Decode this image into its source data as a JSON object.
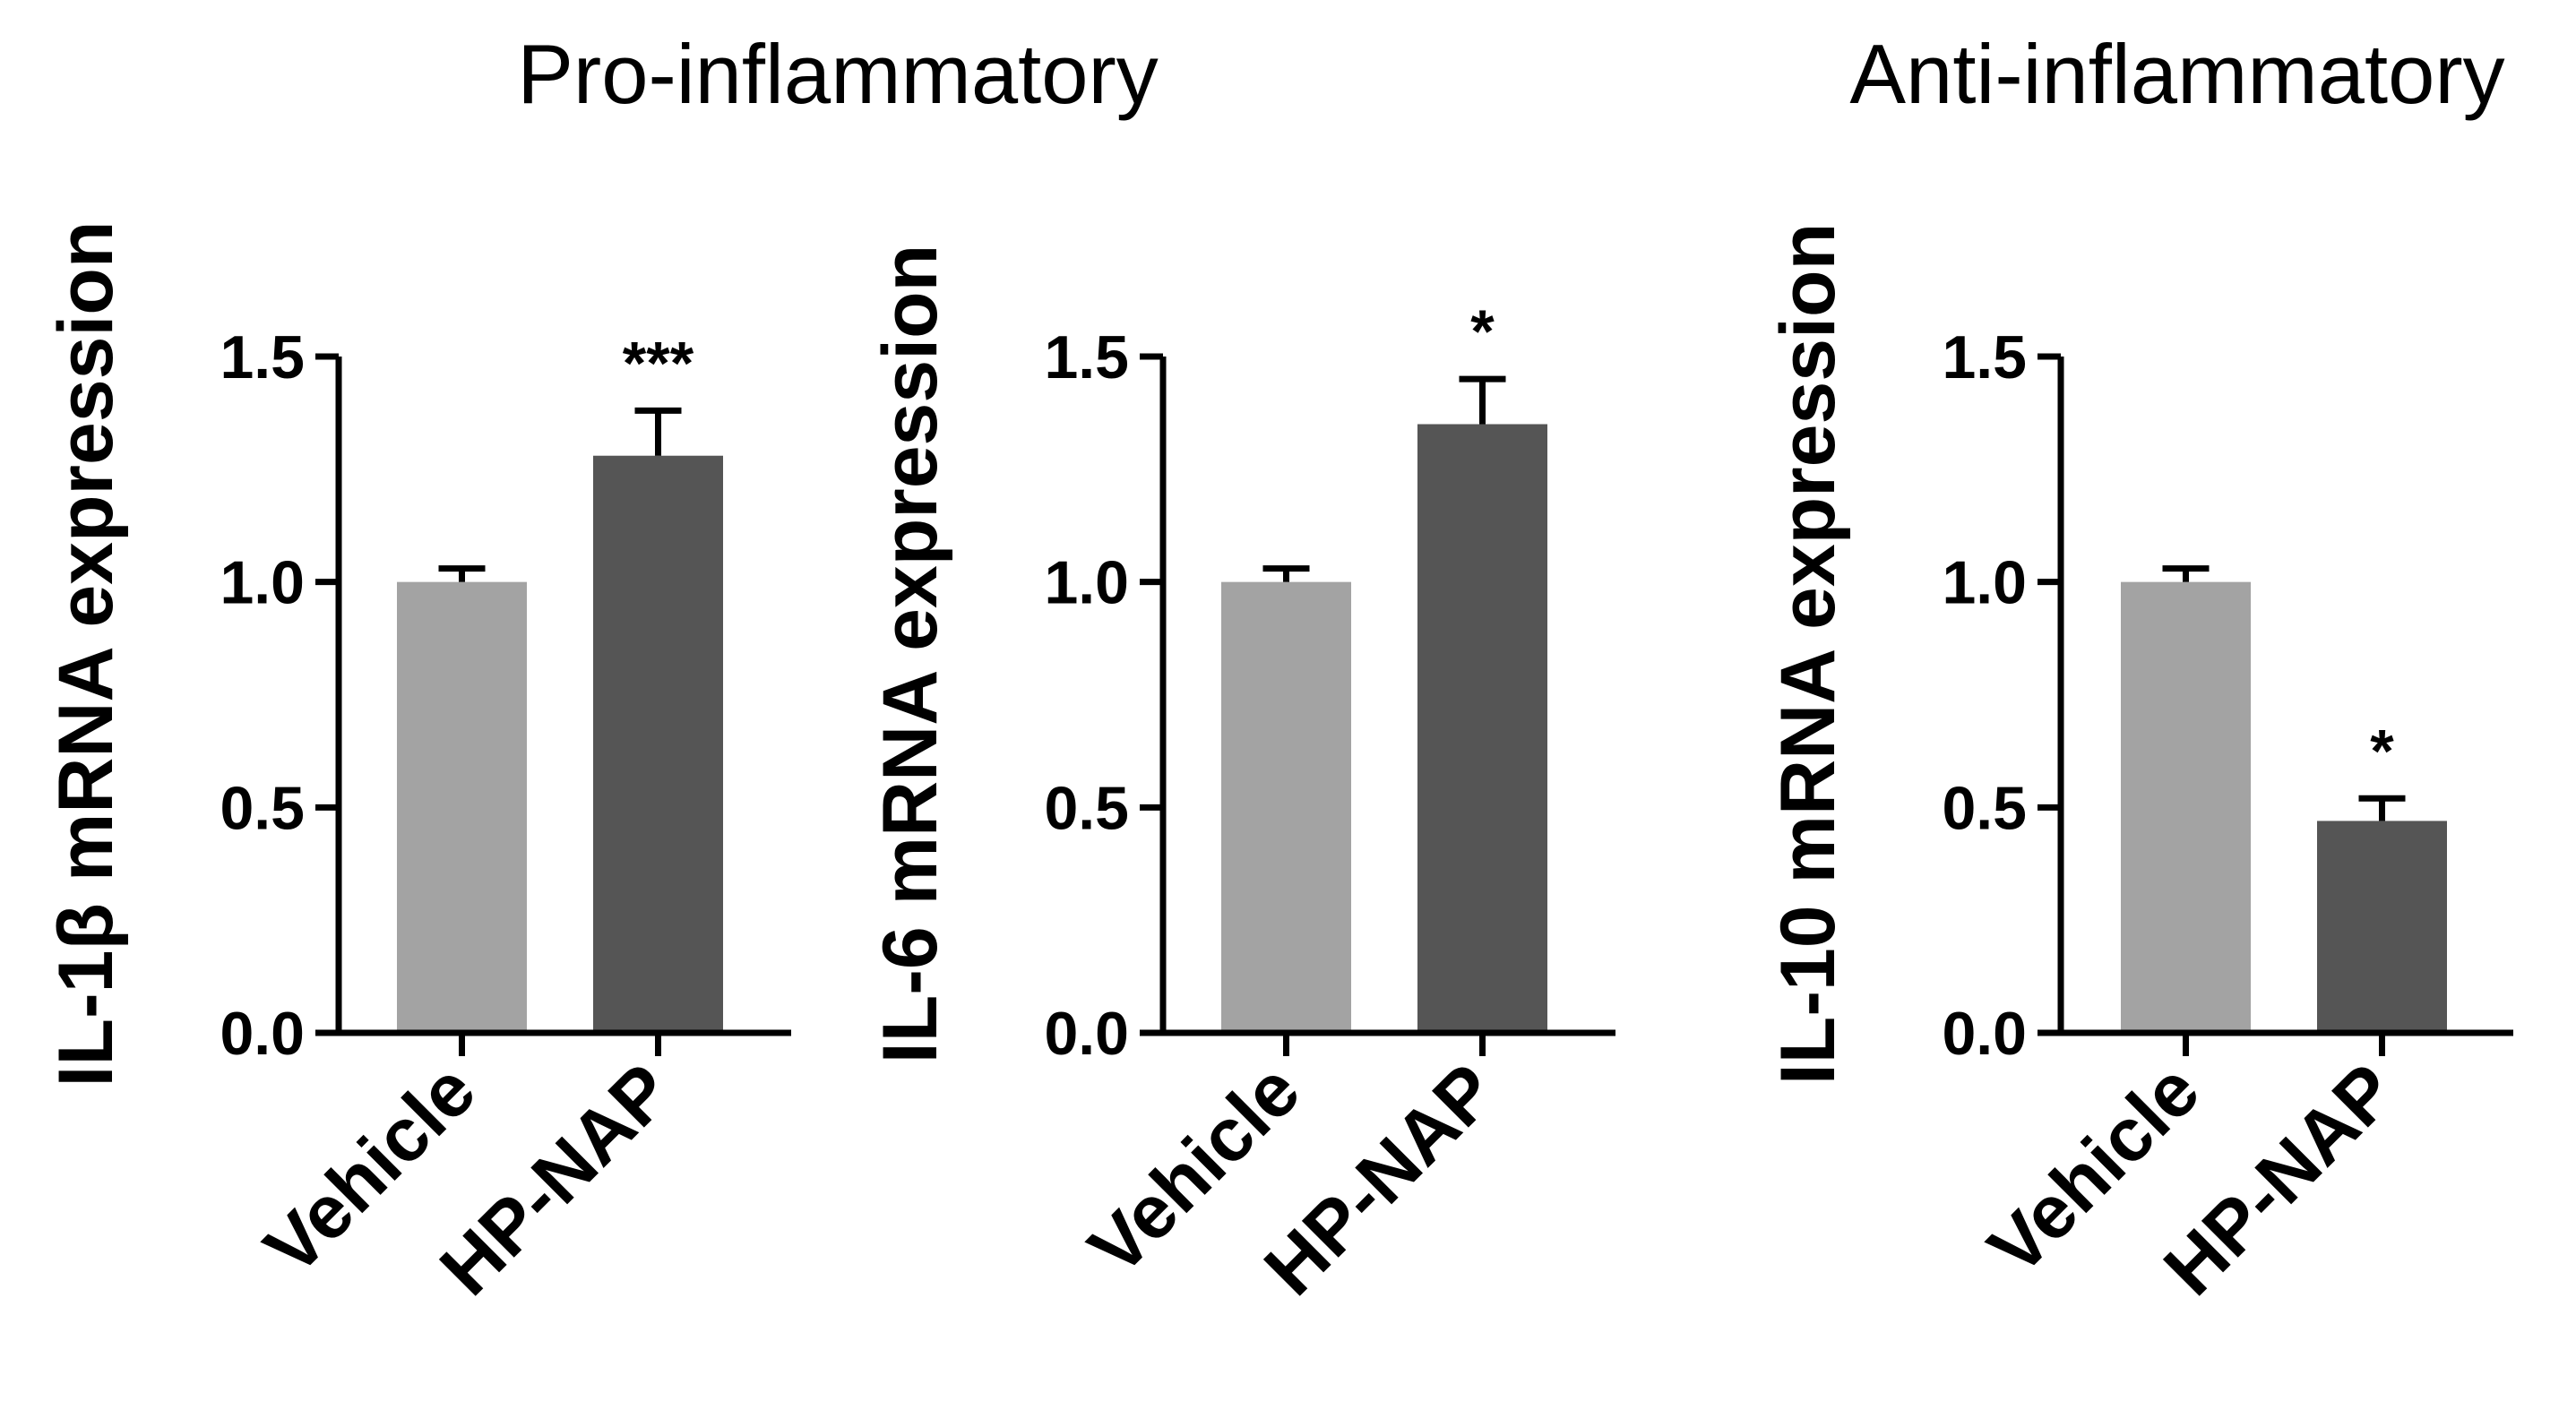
{
  "figure": {
    "group_titles": [
      "Pro-inflammatory",
      "Anti-inflammatory"
    ]
  },
  "colors": {
    "vehicle": "#a3a3a3",
    "hpnap": "#555555",
    "axis": "#000000"
  },
  "chart_data": [
    {
      "type": "bar",
      "group": "Pro-inflammatory",
      "title": "",
      "ylabel": "IL-1β mRNA expression",
      "xlabel": "",
      "categories": [
        "Vehicle",
        "HP-NAP"
      ],
      "values": [
        1.0,
        1.28
      ],
      "errors": [
        0.03,
        0.1
      ],
      "significance": [
        "",
        "***"
      ],
      "ylim": [
        0,
        1.5
      ],
      "yticks": [
        0.0,
        0.5,
        1.0,
        1.5
      ],
      "ytick_labels": [
        "0.0",
        "0.5",
        "1.0",
        "1.5"
      ]
    },
    {
      "type": "bar",
      "group": "Pro-inflammatory",
      "title": "",
      "ylabel": "IL-6 mRNA expression",
      "xlabel": "",
      "categories": [
        "Vehicle",
        "HP-NAP"
      ],
      "values": [
        1.0,
        1.35
      ],
      "errors": [
        0.03,
        0.1
      ],
      "significance": [
        "",
        "*"
      ],
      "ylim": [
        0,
        1.5
      ],
      "yticks": [
        0.0,
        0.5,
        1.0,
        1.5
      ],
      "ytick_labels": [
        "0.0",
        "0.5",
        "1.0",
        "1.5"
      ]
    },
    {
      "type": "bar",
      "group": "Anti-inflammatory",
      "title": "",
      "ylabel": "IL-10 mRNA expression",
      "xlabel": "",
      "categories": [
        "Vehicle",
        "HP-NAP"
      ],
      "values": [
        1.0,
        0.47
      ],
      "errors": [
        0.03,
        0.05
      ],
      "significance": [
        "",
        "*"
      ],
      "ylim": [
        0,
        1.5
      ],
      "yticks": [
        0.0,
        0.5,
        1.0,
        1.5
      ],
      "ytick_labels": [
        "0.0",
        "0.5",
        "1.0",
        "1.5"
      ]
    }
  ]
}
